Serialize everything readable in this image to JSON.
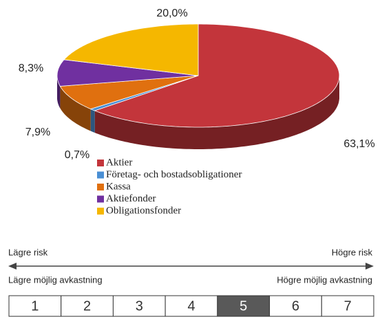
{
  "chart_data": {
    "type": "pie",
    "categories": [
      "Aktier",
      "Företag- och bostadsobligationer",
      "Kassa",
      "Aktiefonder",
      "Obligationsfonder"
    ],
    "values": [
      63.1,
      0.7,
      7.9,
      8.3,
      20.0
    ],
    "value_labels": [
      "63,1%",
      "0,7%",
      "7,9%",
      "8,3%",
      "20,0%"
    ],
    "colors": [
      "#c3353b",
      "#4a8fd4",
      "#e0700f",
      "#7030a0",
      "#f5b700"
    ],
    "start_angle": 0,
    "direction": "clockwise",
    "legend": "bottom-left"
  },
  "risk_scale": {
    "low_risk": "Lägre  risk",
    "high_risk": "Högre risk",
    "low_return": "Lägre möjlig avkastning",
    "high_return": "Högre möjlig avkastning",
    "levels": [
      "1",
      "2",
      "3",
      "4",
      "5",
      "6",
      "7"
    ],
    "selected": 4
  }
}
